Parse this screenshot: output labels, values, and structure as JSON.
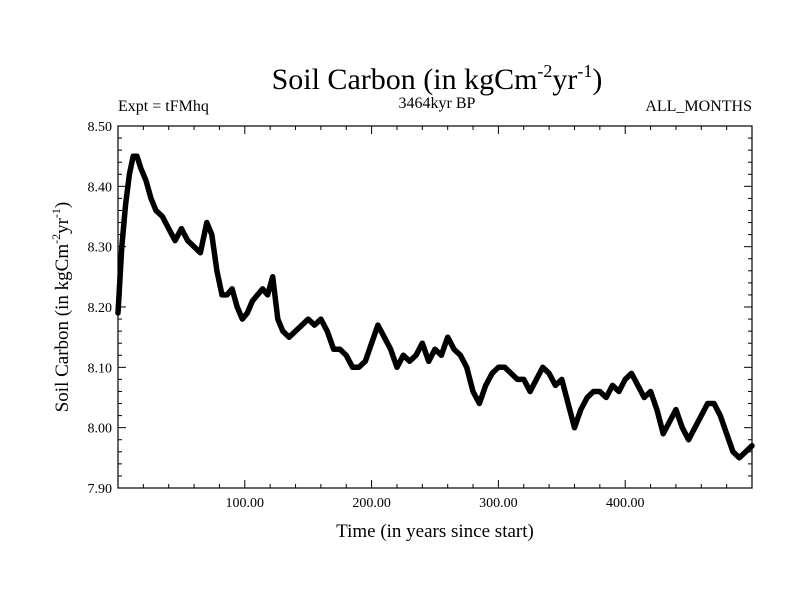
{
  "chart_data": {
    "type": "line",
    "title_main": "Soil Carbon (in kgCm",
    "title_sup1": "-2",
    "title_mid": "yr",
    "title_sup2": "-1",
    "title_end": ")",
    "subtitle_left": "Expt = tFMhq",
    "subtitle_center": "3464kyr BP",
    "subtitle_right": "ALL_MONTHS",
    "xlabel": "Time (in years since start)",
    "ylabel_main": "Soil Carbon (in kgCm",
    "ylabel_sup1": "-2",
    "ylabel_mid": "yr",
    "ylabel_sup2": "-1",
    "ylabel_end": ")",
    "xlim": [
      0,
      500
    ],
    "ylim": [
      7.9,
      8.5
    ],
    "x_ticks": [
      100,
      200,
      300,
      400
    ],
    "x_tick_labels": [
      "100.00",
      "200.00",
      "300.00",
      "400.00"
    ],
    "y_ticks": [
      7.9,
      8.0,
      8.1,
      8.2,
      8.3,
      8.4,
      8.5
    ],
    "y_tick_labels": [
      "7.90",
      "8.00",
      "8.10",
      "8.20",
      "8.30",
      "8.40",
      "8.50"
    ],
    "line_color": "#000000",
    "series": [
      {
        "name": "Soil Carbon",
        "x": [
          0,
          3,
          6,
          9,
          12,
          15,
          18,
          22,
          26,
          30,
          35,
          40,
          45,
          50,
          55,
          60,
          65,
          70,
          74,
          78,
          82,
          86,
          90,
          94,
          98,
          102,
          106,
          110,
          114,
          118,
          122,
          126,
          130,
          135,
          140,
          145,
          150,
          155,
          160,
          165,
          170,
          175,
          180,
          185,
          190,
          195,
          200,
          205,
          210,
          215,
          220,
          225,
          230,
          235,
          240,
          245,
          250,
          255,
          260,
          265,
          270,
          275,
          280,
          285,
          290,
          295,
          300,
          305,
          310,
          315,
          320,
          325,
          330,
          335,
          340,
          345,
          350,
          355,
          360,
          365,
          370,
          375,
          380,
          385,
          390,
          395,
          400,
          405,
          410,
          415,
          420,
          425,
          430,
          435,
          440,
          445,
          450,
          455,
          460,
          465,
          470,
          475,
          480,
          485,
          490,
          495,
          500
        ],
        "values": [
          8.19,
          8.3,
          8.37,
          8.42,
          8.45,
          8.45,
          8.43,
          8.41,
          8.38,
          8.36,
          8.35,
          8.33,
          8.31,
          8.33,
          8.31,
          8.3,
          8.29,
          8.34,
          8.32,
          8.26,
          8.22,
          8.22,
          8.23,
          8.2,
          8.18,
          8.19,
          8.21,
          8.22,
          8.23,
          8.22,
          8.25,
          8.18,
          8.16,
          8.15,
          8.16,
          8.17,
          8.18,
          8.17,
          8.18,
          8.16,
          8.13,
          8.13,
          8.12,
          8.1,
          8.1,
          8.11,
          8.14,
          8.17,
          8.15,
          8.13,
          8.1,
          8.12,
          8.11,
          8.12,
          8.14,
          8.11,
          8.13,
          8.12,
          8.15,
          8.13,
          8.12,
          8.1,
          8.06,
          8.04,
          8.07,
          8.09,
          8.1,
          8.1,
          8.09,
          8.08,
          8.08,
          8.06,
          8.08,
          8.1,
          8.09,
          8.07,
          8.08,
          8.04,
          8.0,
          8.03,
          8.05,
          8.06,
          8.06,
          8.05,
          8.07,
          8.06,
          8.08,
          8.09,
          8.07,
          8.05,
          8.06,
          8.03,
          7.99,
          8.01,
          8.03,
          8.0,
          7.98,
          8.0,
          8.02,
          8.04,
          8.04,
          8.02,
          7.99,
          7.96,
          7.95,
          7.96,
          7.97
        ]
      }
    ]
  }
}
